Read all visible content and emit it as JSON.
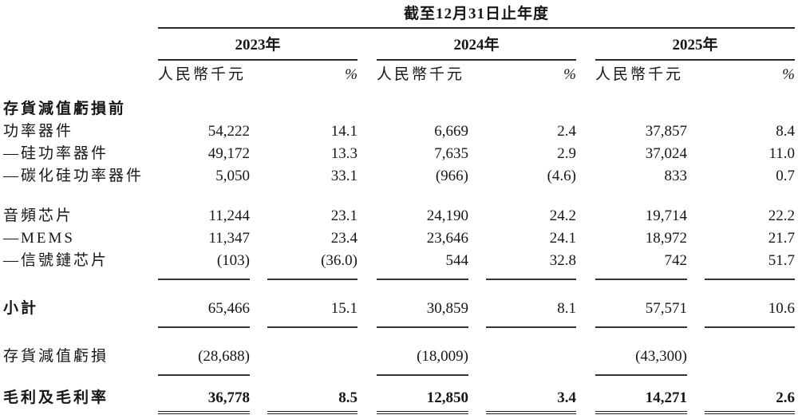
{
  "colors": {
    "text": "#161616",
    "rule_heavy": "#2a2a2a",
    "rule_light": "#333333"
  },
  "table": {
    "title": "截至12月31日止年度",
    "years": [
      "2023年",
      "2024年",
      "2025年"
    ],
    "unit_header": "人民幣千元",
    "pct_header": "%",
    "rows": [
      {
        "name": "before-inventory-impairment-section",
        "label": "存貨減值虧損前",
        "bold_label": true,
        "values": [
          "",
          "",
          "",
          "",
          "",
          ""
        ],
        "gap_before": false,
        "underline": "none"
      },
      {
        "name": "power-devices",
        "label": "功率器件",
        "bold_label": false,
        "values": [
          "54,222",
          "14.1",
          "6,669",
          "2.4",
          "37,857",
          "8.4"
        ],
        "gap_before": false,
        "underline": "none"
      },
      {
        "name": "silicon-power-devices",
        "label": "—硅功率器件",
        "bold_label": false,
        "values": [
          "49,172",
          "13.3",
          "7,635",
          "2.9",
          "37,024",
          "11.0"
        ],
        "gap_before": false,
        "underline": "none"
      },
      {
        "name": "sic-power-devices",
        "label": "—碳化硅功率器件",
        "bold_label": false,
        "values": [
          "5,050",
          "33.1",
          "(966)",
          "(4.6)",
          "833",
          "0.7"
        ],
        "gap_before": false,
        "underline": "none"
      },
      {
        "name": "audio-chips",
        "label": "音頻芯片",
        "bold_label": false,
        "values": [
          "11,244",
          "23.1",
          "24,190",
          "24.2",
          "19,714",
          "22.2"
        ],
        "gap_before": true,
        "underline": "none"
      },
      {
        "name": "mems",
        "label": "—MEMS",
        "bold_label": false,
        "values": [
          "11,347",
          "23.4",
          "23,646",
          "24.1",
          "18,972",
          "21.7"
        ],
        "gap_before": false,
        "underline": "none"
      },
      {
        "name": "signal-chain-chips",
        "label": "—信號鏈芯片",
        "bold_label": false,
        "values": [
          "(103)",
          "(36.0)",
          "544",
          "32.8",
          "742",
          "51.7"
        ],
        "gap_before": false,
        "underline": "all"
      },
      {
        "name": "subtotal",
        "label": "小計",
        "bold_label": true,
        "values": [
          "65,466",
          "15.1",
          "30,859",
          "8.1",
          "57,571",
          "10.6"
        ],
        "gap_before": true,
        "underline": "all"
      },
      {
        "name": "inventory-impairment-loss",
        "label": "存貨減值虧損",
        "bold_label": false,
        "values": [
          "(28,688)",
          "",
          "(18,009)",
          "",
          "(43,300)",
          ""
        ],
        "gap_before": true,
        "underline": "amounts"
      },
      {
        "name": "gross-profit-and-margin",
        "label": "毛利及毛利率",
        "bold_label": true,
        "bold_values": true,
        "values": [
          "36,778",
          "8.5",
          "12,850",
          "3.4",
          "14,271",
          "2.6"
        ],
        "gap_before": true,
        "underline": "double"
      }
    ]
  }
}
